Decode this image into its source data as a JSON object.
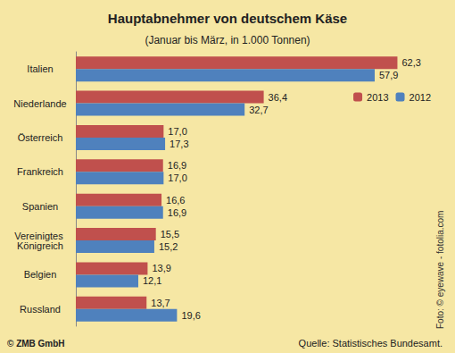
{
  "chart_data": {
    "type": "bar",
    "orientation": "horizontal",
    "title": "Hauptabnehmer von deutschem Käse",
    "subtitle": "(Januar bis März, in 1.000 Tonnen)",
    "categories": [
      "Italien",
      "Niederlande",
      "Österreich",
      "Frankreich",
      "Spanien",
      "Vereinigtes Königreich",
      "Belgien",
      "Russland"
    ],
    "series": [
      {
        "name": "2013",
        "color": "#c0504d",
        "values": [
          62.3,
          36.4,
          17.0,
          16.9,
          16.6,
          15.5,
          13.9,
          13.7
        ],
        "value_labels": [
          "62,3",
          "36,4",
          "17,0",
          "16,9",
          "16,6",
          "15,5",
          "13,9",
          "13,7"
        ]
      },
      {
        "name": "2012",
        "color": "#4f81bd",
        "values": [
          57.9,
          32.7,
          17.3,
          17.0,
          16.9,
          15.2,
          12.1,
          19.6
        ],
        "value_labels": [
          "57,9",
          "32,7",
          "17,3",
          "17,0",
          "16,9",
          "15,2",
          "12,1",
          "19,6"
        ]
      }
    ],
    "xlim": [
      0,
      70
    ],
    "grid": false,
    "legend": "top-right",
    "data_labels": true,
    "tick_labels": "y",
    "copyright": "© ZMB GmbH",
    "source": "Quelle: Statistisches Bundesamt.",
    "photo_credit": "Foto: © eyewave - fotolia.com"
  }
}
